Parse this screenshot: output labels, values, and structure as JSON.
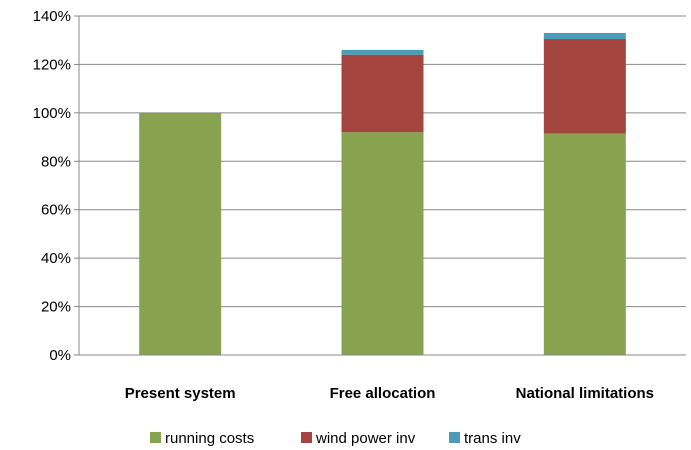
{
  "chart_data": {
    "type": "bar",
    "stacked": true,
    "categories": [
      "Present system",
      "Free allocation",
      "National limitations"
    ],
    "series": [
      {
        "name": "running costs",
        "values": [
          100,
          92,
          91.5
        ],
        "color": "#87a34f"
      },
      {
        "name": "wind power inv",
        "values": [
          0,
          32,
          39
        ],
        "color": "#a3443f"
      },
      {
        "name": "trans inv",
        "values": [
          0,
          2,
          2.5
        ],
        "color": "#4a9db5"
      }
    ],
    "yticks": [
      "0%",
      "20%",
      "40%",
      "60%",
      "80%",
      "100%",
      "120%",
      "140%"
    ],
    "ylim": [
      0,
      140
    ],
    "legend_position": "bottom",
    "grid": true
  }
}
